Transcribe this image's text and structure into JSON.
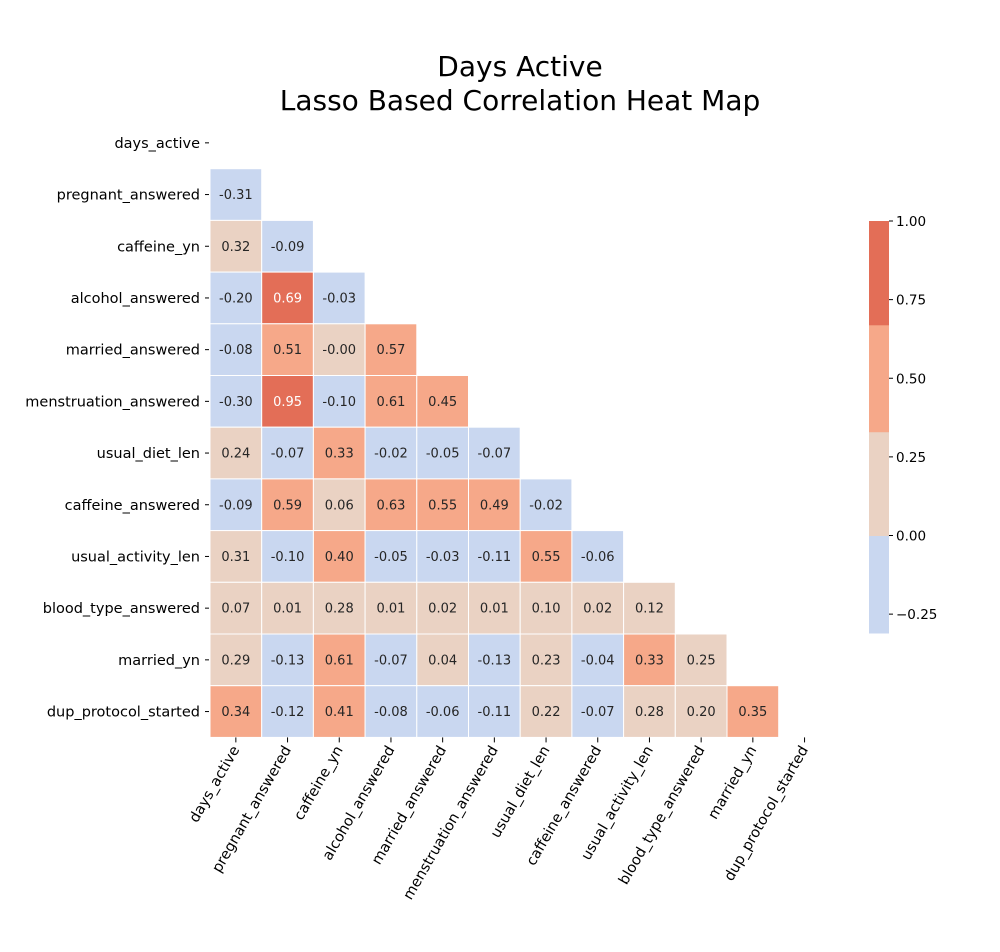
{
  "chart_data": {
    "type": "heatmap",
    "title": [
      "Days Active",
      "Lasso Based Correlation Heat Map"
    ],
    "mask": "upper-triangle-including-diagonal",
    "labels": [
      "days_active",
      "pregnant_answered",
      "caffeine_yn",
      "alcohol_answered",
      "married_answered",
      "menstruation_answered",
      "usual_diet_len",
      "caffeine_answered",
      "usual_activity_len",
      "blood_type_answered",
      "married_yn",
      "dup_protocol_started"
    ],
    "values": [
      [],
      [
        "-0.31"
      ],
      [
        "0.32",
        "-0.09"
      ],
      [
        "-0.20",
        "0.69",
        "-0.03"
      ],
      [
        "-0.08",
        "0.51",
        "-0.00",
        "0.57"
      ],
      [
        "-0.30",
        "0.95",
        "-0.10",
        "0.61",
        "0.45"
      ],
      [
        "0.24",
        "-0.07",
        "0.33",
        "-0.02",
        "-0.05",
        "-0.07"
      ],
      [
        "-0.09",
        "0.59",
        "0.06",
        "0.63",
        "0.55",
        "0.49",
        "-0.02"
      ],
      [
        "0.31",
        "-0.10",
        "0.40",
        "-0.05",
        "-0.03",
        "-0.11",
        "0.55",
        "-0.06"
      ],
      [
        "0.07",
        "0.01",
        "0.28",
        "0.01",
        "0.02",
        "0.01",
        "0.10",
        "0.02",
        "0.12"
      ],
      [
        "0.29",
        "-0.13",
        "0.61",
        "-0.07",
        "0.04",
        "-0.13",
        "0.23",
        "-0.04",
        "0.33",
        "0.25"
      ],
      [
        "0.34",
        "-0.12",
        "0.41",
        "-0.08",
        "-0.06",
        "-0.11",
        "0.22",
        "-0.07",
        "0.28",
        "0.20",
        "0.35"
      ]
    ],
    "colorbar": {
      "range": [
        -0.31,
        1.0
      ],
      "ticks": [
        "1.00",
        "0.75",
        "0.50",
        "0.25",
        "0.00",
        "−0.25"
      ],
      "bins": [
        {
          "min": -0.31,
          "max": 0.0,
          "color": "#c9d7f0"
        },
        {
          "min": 0.0,
          "max": 0.33,
          "color": "#ead2c3"
        },
        {
          "min": 0.33,
          "max": 0.67,
          "color": "#f6a889"
        },
        {
          "min": 0.67,
          "max": 1.0,
          "color": "#e36e57"
        }
      ]
    },
    "colors": {
      "text_dark": "#262626",
      "text_light": "#ffffff",
      "gridline": "#ffffff"
    }
  }
}
